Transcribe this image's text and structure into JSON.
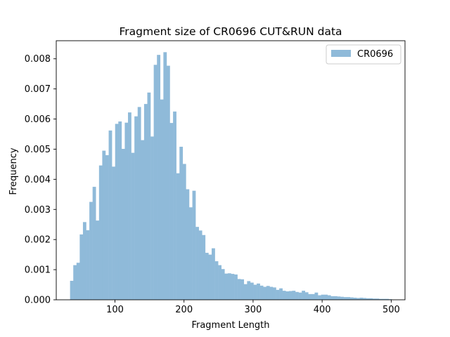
{
  "chart_data": {
    "type": "bar",
    "title": "Fragment size of CR0696 CUT&RUN data",
    "xlabel": "Fragment Length",
    "ylabel": "Frequency",
    "xlim": [
      15,
      520
    ],
    "ylim": [
      0,
      0.0086
    ],
    "xticks": [
      100,
      200,
      300,
      400,
      500
    ],
    "yticks": [
      0.0,
      0.001,
      0.002,
      0.003,
      0.004,
      0.005,
      0.006,
      0.007,
      0.008
    ],
    "ytick_labels": [
      "0.000",
      "0.001",
      "0.002",
      "0.003",
      "0.004",
      "0.005",
      "0.006",
      "0.007",
      "0.008"
    ],
    "grid": false,
    "legend_position": "top-right",
    "colors": {
      "series": "#8fbad9"
    },
    "series": [
      {
        "name": "CR0696",
        "bin_start": 35,
        "bin_width": 4.66,
        "values": [
          0.00063,
          0.00115,
          0.00123,
          0.00217,
          0.00258,
          0.00231,
          0.00325,
          0.00375,
          0.00263,
          0.00446,
          0.00495,
          0.0048,
          0.00562,
          0.00442,
          0.00584,
          0.00592,
          0.00501,
          0.00588,
          0.00622,
          0.00488,
          0.00609,
          0.0064,
          0.0053,
          0.0065,
          0.00688,
          0.00542,
          0.0078,
          0.00813,
          0.00665,
          0.00822,
          0.00777,
          0.00587,
          0.00625,
          0.0042,
          0.00508,
          0.00451,
          0.00367,
          0.00307,
          0.00362,
          0.00242,
          0.0023,
          0.00215,
          0.00156,
          0.0015,
          0.00171,
          0.00128,
          0.00115,
          0.00102,
          0.00087,
          0.00088,
          0.00086,
          0.00084,
          0.00069,
          0.00068,
          0.00052,
          0.00062,
          0.00057,
          0.0005,
          0.00054,
          0.00047,
          0.00043,
          0.00046,
          0.00043,
          0.00041,
          0.00033,
          0.00038,
          0.0003,
          0.00028,
          0.00029,
          0.0003,
          0.00026,
          0.00024,
          0.0003,
          0.00025,
          0.00019,
          0.00019,
          0.00024,
          0.00015,
          0.00017,
          0.00017,
          0.00015,
          0.00012,
          0.00012,
          0.00011,
          0.0001,
          9e-05,
          9e-05,
          8e-05,
          7e-05,
          6e-05,
          7e-05,
          6e-05,
          5e-05,
          5e-05,
          4e-05,
          4e-05,
          3e-05,
          3e-05,
          3e-05,
          2e-05
        ]
      }
    ]
  }
}
